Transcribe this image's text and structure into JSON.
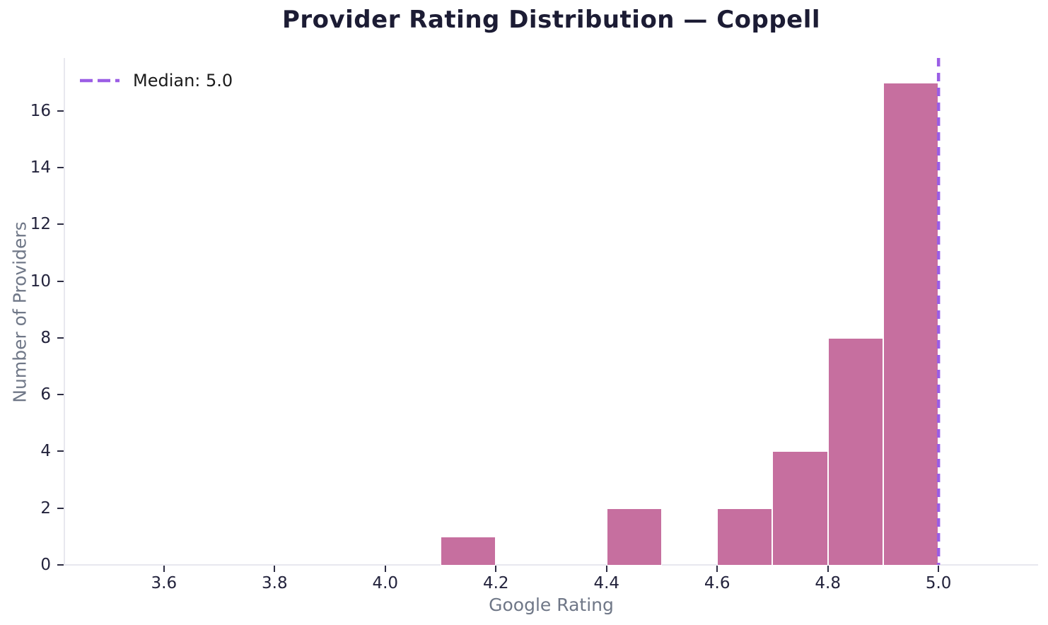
{
  "chart_data": {
    "type": "bar",
    "subtype": "histogram",
    "title": "Provider Rating Distribution — Coppell",
    "xlabel": "Google Rating",
    "ylabel": "Number of Providers",
    "legend": {
      "label": "Median: 5.0",
      "position": "upper left",
      "line_style": "dashed"
    },
    "median_value": 5.0,
    "bin_width": 0.1,
    "bins": [
      {
        "range": [
          4.1,
          4.2
        ],
        "count": 1
      },
      {
        "range": [
          4.4,
          4.5
        ],
        "count": 2
      },
      {
        "range": [
          4.6,
          4.7
        ],
        "count": 2
      },
      {
        "range": [
          4.7,
          4.8
        ],
        "count": 4
      },
      {
        "range": [
          4.8,
          4.9
        ],
        "count": 8
      },
      {
        "range": [
          4.9,
          5.0
        ],
        "count": 17
      }
    ],
    "x_ticks": [
      {
        "value": 3.6,
        "label": "3.6"
      },
      {
        "value": 3.8,
        "label": "3.8"
      },
      {
        "value": 4.0,
        "label": "4.0"
      },
      {
        "value": 4.2,
        "label": "4.2"
      },
      {
        "value": 4.4,
        "label": "4.4"
      },
      {
        "value": 4.6,
        "label": "4.6"
      },
      {
        "value": 4.8,
        "label": "4.8"
      },
      {
        "value": 5.0,
        "label": "5.0"
      }
    ],
    "y_ticks": [
      {
        "value": 0,
        "label": "0"
      },
      {
        "value": 2,
        "label": "2"
      },
      {
        "value": 4,
        "label": "4"
      },
      {
        "value": 6,
        "label": "6"
      },
      {
        "value": 8,
        "label": "8"
      },
      {
        "value": 10,
        "label": "10"
      },
      {
        "value": 12,
        "label": "12"
      },
      {
        "value": 14,
        "label": "14"
      },
      {
        "value": 16,
        "label": "16"
      }
    ],
    "xlim": [
      3.42,
      5.18
    ],
    "ylim": [
      0,
      17.86
    ],
    "grid": false,
    "colors": {
      "bar": "#c66f9f",
      "bar_edge": "#ffffff",
      "median_line": "#9b5ee5",
      "spine": "#e8e8ef",
      "tick_mark": "#2e2e44",
      "tick_label": "#23233c",
      "title": "#1c1c34",
      "axis_label": "#6f7787",
      "legend_text": "#1b1b1b",
      "background": "#ffffff"
    }
  }
}
